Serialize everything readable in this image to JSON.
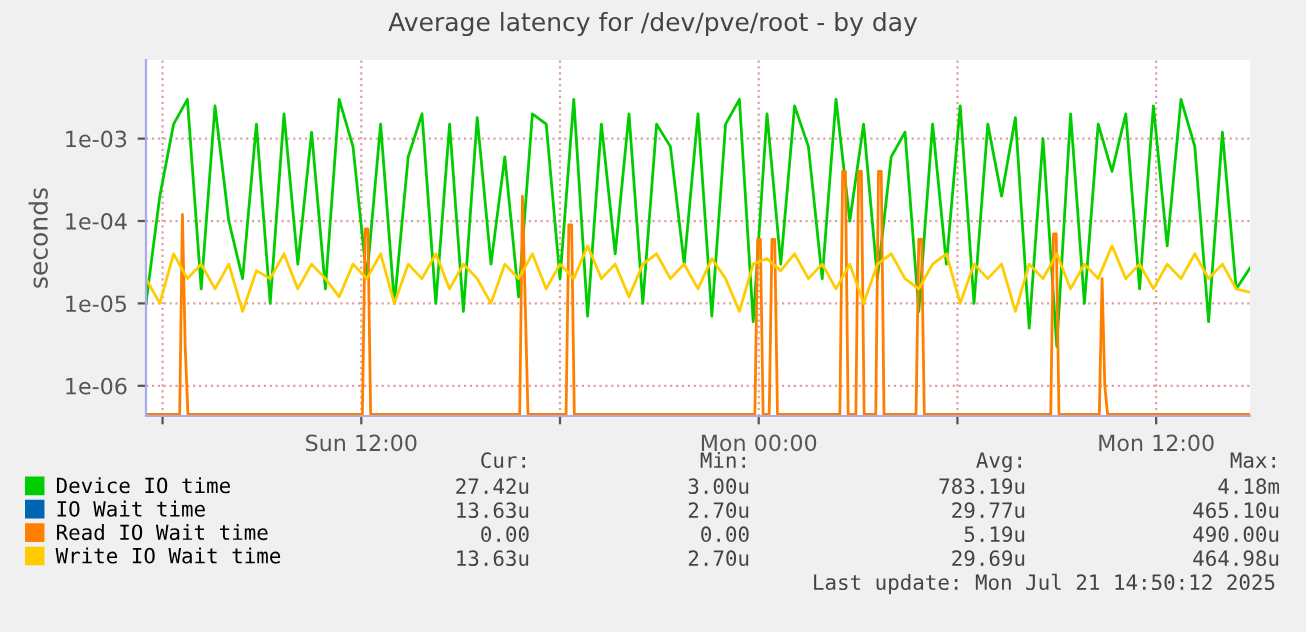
{
  "chart_data": {
    "type": "line",
    "title": "Average latency for /dev/pve/root - by day",
    "ylabel": "seconds",
    "log": true,
    "grid": true,
    "legend": "bottom left",
    "marker": "none",
    "line_style": "solid",
    "xlim": [
      "2025-07-20T05:30",
      "2025-07-21T14:50"
    ],
    "xticks": [
      {
        "value": "2025-07-20T06:00",
        "label": null
      },
      {
        "value": "2025-07-20T12:00",
        "label": "Sun 12:00"
      },
      {
        "value": "2025-07-20T18:00",
        "label": null
      },
      {
        "value": "2025-07-21T00:00",
        "label": "Mon 00:00"
      },
      {
        "value": "2025-07-21T06:00",
        "label": null
      },
      {
        "value": "2025-07-21T12:00",
        "label": "Mon 12:00"
      }
    ],
    "ylim": [
      4.3e-07,
      0.009
    ],
    "yticks": [
      {
        "value": 1e-06,
        "label": "1e-06"
      },
      {
        "value": 1e-05,
        "label": "1e-05"
      },
      {
        "value": 0.0001,
        "label": "1e-04"
      },
      {
        "value": 0.001,
        "label": "1e-03"
      }
    ],
    "x": [
      "2025-07-20T05:30",
      "2025-07-20T05:55",
      "2025-07-20T06:20",
      "2025-07-20T06:45",
      "2025-07-20T07:10",
      "2025-07-20T07:35",
      "2025-07-20T08:00",
      "2025-07-20T08:25",
      "2025-07-20T08:50",
      "2025-07-20T09:15",
      "2025-07-20T09:40",
      "2025-07-20T10:05",
      "2025-07-20T10:30",
      "2025-07-20T10:55",
      "2025-07-20T11:20",
      "2025-07-20T11:45",
      "2025-07-20T12:10",
      "2025-07-20T12:35",
      "2025-07-20T13:00",
      "2025-07-20T13:25",
      "2025-07-20T13:50",
      "2025-07-20T14:15",
      "2025-07-20T14:40",
      "2025-07-20T15:05",
      "2025-07-20T15:30",
      "2025-07-20T15:55",
      "2025-07-20T16:20",
      "2025-07-20T16:45",
      "2025-07-20T17:10",
      "2025-07-20T17:35",
      "2025-07-20T18:00",
      "2025-07-20T18:25",
      "2025-07-20T18:50",
      "2025-07-20T19:15",
      "2025-07-20T19:40",
      "2025-07-20T20:05",
      "2025-07-20T20:30",
      "2025-07-20T20:55",
      "2025-07-20T21:20",
      "2025-07-20T21:45",
      "2025-07-20T22:10",
      "2025-07-20T22:35",
      "2025-07-20T23:00",
      "2025-07-20T23:25",
      "2025-07-20T23:50",
      "2025-07-21T00:15",
      "2025-07-21T00:40",
      "2025-07-21T01:05",
      "2025-07-21T01:30",
      "2025-07-21T01:55",
      "2025-07-21T02:20",
      "2025-07-21T02:45",
      "2025-07-21T03:10",
      "2025-07-21T03:35",
      "2025-07-21T04:00",
      "2025-07-21T04:25",
      "2025-07-21T04:50",
      "2025-07-21T05:15",
      "2025-07-21T05:40",
      "2025-07-21T06:05",
      "2025-07-21T06:30",
      "2025-07-21T06:55",
      "2025-07-21T07:20",
      "2025-07-21T07:45",
      "2025-07-21T08:10",
      "2025-07-21T08:35",
      "2025-07-21T09:00",
      "2025-07-21T09:25",
      "2025-07-21T09:50",
      "2025-07-21T10:15",
      "2025-07-21T10:40",
      "2025-07-21T11:05",
      "2025-07-21T11:30",
      "2025-07-21T11:55",
      "2025-07-21T12:20",
      "2025-07-21T12:45",
      "2025-07-21T13:10",
      "2025-07-21T13:35",
      "2025-07-21T14:00",
      "2025-07-21T14:25",
      "2025-07-21T14:50"
    ],
    "series": [
      {
        "name": "Device IO time",
        "color": "#00cc00",
        "values": [
          1e-05,
          0.0002,
          0.0015,
          0.003,
          1.5e-05,
          0.0025,
          0.0001,
          2e-05,
          0.0015,
          1e-05,
          0.002,
          3e-05,
          0.0012,
          1.5e-05,
          0.003,
          0.0008,
          2e-05,
          0.0015,
          1e-05,
          0.0006,
          0.002,
          1e-05,
          0.0015,
          8e-06,
          0.0018,
          3e-05,
          0.0006,
          1.2e-05,
          0.002,
          0.0015,
          2e-05,
          0.003,
          7e-06,
          0.0015,
          4e-05,
          0.002,
          1e-05,
          0.0015,
          0.0008,
          3e-05,
          0.002,
          7e-06,
          0.0015,
          0.003,
          6e-06,
          0.002,
          3e-05,
          0.0025,
          0.0008,
          2e-05,
          0.003,
          0.0001,
          0.0015,
          2e-05,
          0.0006,
          0.0012,
          8e-06,
          0.0015,
          3e-05,
          0.0025,
          1e-05,
          0.0015,
          0.0002,
          0.0018,
          5e-06,
          0.001,
          3e-06,
          0.002,
          1e-05,
          0.0015,
          0.0004,
          0.002,
          1.5e-05,
          0.0025,
          5e-05,
          0.003,
          0.0008,
          6e-06,
          0.0012,
          1.5e-05,
          2.7e-05
        ]
      },
      {
        "name": "IO Wait time",
        "color": "#0066b3",
        "values": [
          null,
          null,
          null,
          null,
          null,
          null,
          null,
          null,
          null,
          null,
          null,
          null,
          null,
          null,
          null,
          null,
          null,
          null,
          null,
          null,
          null,
          null,
          null,
          null,
          null,
          null,
          null,
          null,
          null,
          null,
          null,
          null,
          null,
          null,
          null,
          null,
          null,
          null,
          null,
          null,
          null,
          null,
          null,
          null,
          null,
          null,
          null,
          null,
          null,
          null,
          null,
          null,
          null,
          null,
          null,
          null,
          null,
          null,
          null,
          null,
          null,
          null,
          null,
          null,
          null,
          null,
          null,
          null,
          null,
          null,
          null,
          null,
          null,
          null,
          null,
          null,
          null,
          null,
          null,
          null,
          null
        ]
      },
      {
        "name": "Read IO Wait time",
        "color": "#ff8000",
        "x": [
          "2025-07-20T05:30",
          "2025-07-20T06:31",
          "2025-07-20T06:36",
          "2025-07-20T06:41",
          "2025-07-20T06:46",
          "2025-07-20T12:02",
          "2025-07-20T12:07",
          "2025-07-20T12:12",
          "2025-07-20T12:17",
          "2025-07-20T16:47",
          "2025-07-20T16:52",
          "2025-07-20T16:57",
          "2025-07-20T17:02",
          "2025-07-20T18:11",
          "2025-07-20T18:16",
          "2025-07-20T18:21",
          "2025-07-20T18:26",
          "2025-07-20T23:53",
          "2025-07-20T23:58",
          "2025-07-21T00:03",
          "2025-07-21T00:08",
          "2025-07-21T00:19",
          "2025-07-21T00:24",
          "2025-07-21T00:29",
          "2025-07-21T00:34",
          "2025-07-21T02:27",
          "2025-07-21T02:32",
          "2025-07-21T02:37",
          "2025-07-21T02:42",
          "2025-07-21T02:56",
          "2025-07-21T03:01",
          "2025-07-21T03:06",
          "2025-07-21T03:11",
          "2025-07-21T03:32",
          "2025-07-21T03:37",
          "2025-07-21T03:42",
          "2025-07-21T03:47",
          "2025-07-21T04:45",
          "2025-07-21T04:50",
          "2025-07-21T04:55",
          "2025-07-21T05:00",
          "2025-07-21T08:49",
          "2025-07-21T08:54",
          "2025-07-21T08:59",
          "2025-07-21T09:04",
          "2025-07-21T10:17",
          "2025-07-21T10:22",
          "2025-07-21T10:27",
          "2025-07-21T10:32",
          "2025-07-21T14:50"
        ],
        "values": [
          4.5e-07,
          4.5e-07,
          0.00012,
          3e-06,
          4.5e-07,
          4.5e-07,
          8e-05,
          8e-05,
          4.5e-07,
          4.5e-07,
          0.0002,
          1e-05,
          4.5e-07,
          4.5e-07,
          9e-05,
          9e-05,
          4.5e-07,
          4.5e-07,
          6e-05,
          6e-05,
          4.5e-07,
          4.5e-07,
          6e-05,
          6e-05,
          4.5e-07,
          4.5e-07,
          0.0004,
          0.0004,
          4.5e-07,
          4.5e-07,
          0.0004,
          0.0004,
          4.5e-07,
          4.5e-07,
          0.0004,
          0.0004,
          4.5e-07,
          4.5e-07,
          6e-05,
          6e-05,
          4.5e-07,
          4.5e-07,
          7e-05,
          7e-05,
          4.5e-07,
          4.5e-07,
          2e-05,
          1e-06,
          4.5e-07,
          4.5e-07
        ]
      },
      {
        "name": "Write IO Wait time",
        "color": "#ffcc00",
        "values": [
          2e-05,
          1e-05,
          4e-05,
          2e-05,
          3e-05,
          1.5e-05,
          3e-05,
          8e-06,
          2.5e-05,
          2e-05,
          4e-05,
          1.5e-05,
          3e-05,
          2e-05,
          1.2e-05,
          3e-05,
          2e-05,
          4e-05,
          1e-05,
          3e-05,
          2e-05,
          4e-05,
          1.5e-05,
          3e-05,
          2e-05,
          1e-05,
          3e-05,
          2e-05,
          4e-05,
          1.5e-05,
          3e-05,
          2e-05,
          5e-05,
          2e-05,
          3e-05,
          1.2e-05,
          3e-05,
          4e-05,
          2e-05,
          3e-05,
          1.5e-05,
          3.5e-05,
          2e-05,
          8e-06,
          3e-05,
          3.5e-05,
          2.5e-05,
          4e-05,
          2e-05,
          3e-05,
          1.5e-05,
          3e-05,
          1e-05,
          3e-05,
          4e-05,
          2e-05,
          1.5e-05,
          3e-05,
          4e-05,
          1e-05,
          3e-05,
          2e-05,
          3e-05,
          8e-06,
          3e-05,
          2e-05,
          4e-05,
          1.5e-05,
          3e-05,
          2e-05,
          5e-05,
          2e-05,
          3e-05,
          1.5e-05,
          3e-05,
          2e-05,
          4e-05,
          2e-05,
          3e-05,
          1.5e-05,
          1.363e-05
        ]
      }
    ],
    "annotations": [
      "Cur:",
      "Min:",
      "Avg:",
      "Max:",
      "27.42u",
      "3.00u",
      "783.19u",
      "4.18m",
      "13.63u",
      "2.70u",
      "29.77u",
      "465.10u",
      "0.00",
      "0.00",
      "5.19u",
      "490.00u",
      "13.63u",
      "2.70u",
      "29.69u",
      "464.98u",
      "Last update: Mon Jul 21 14:50:12 2025"
    ]
  }
}
